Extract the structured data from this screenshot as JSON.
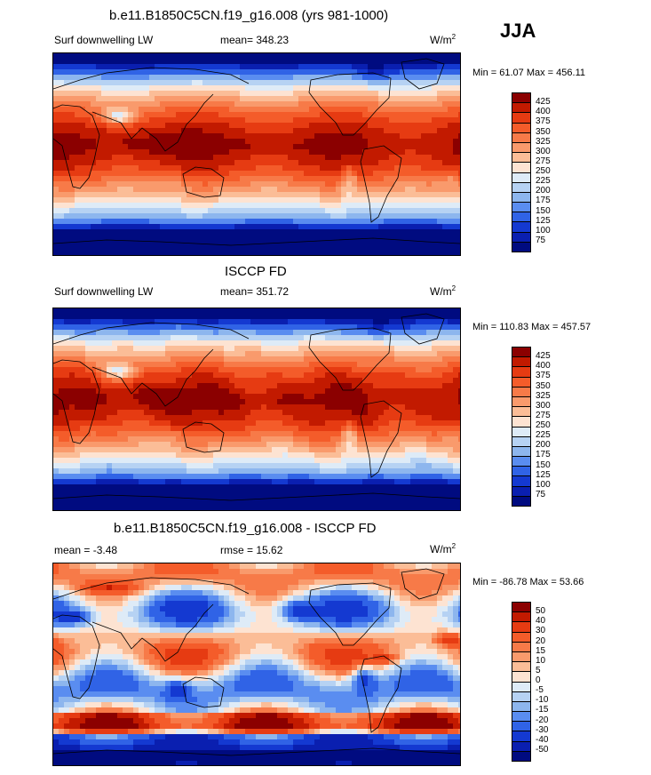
{
  "season": "JJA",
  "panels": [
    {
      "title": "b.e11.B1850C5CN.f19_g16.008 (yrs 981-1000)",
      "left_label": "Surf downwelling LW",
      "center_label": "mean= 348.23",
      "units": "W/m",
      "units_sup": "2",
      "minmax": "Min =  61.07 Max = 456.11",
      "field": "model"
    },
    {
      "title": "ISCCP FD",
      "left_label": "Surf downwelling LW",
      "center_label": "mean= 351.72",
      "units": "W/m",
      "units_sup": "2",
      "minmax": "Min = 110.83 Max = 457.57",
      "field": "obs"
    },
    {
      "title": "b.e11.B1850C5CN.f19_g16.008 - ISCCP FD",
      "left_label": "mean =  -3.48",
      "center_label": "rmse =  15.62",
      "units": "W/m",
      "units_sup": "2",
      "minmax": "Min = -86.78 Max =  53.66",
      "field": "diff"
    }
  ],
  "colorbars": {
    "abs": {
      "labels": [
        "425",
        "400",
        "375",
        "350",
        "325",
        "300",
        "275",
        "250",
        "225",
        "200",
        "175",
        "150",
        "125",
        "100",
        "75"
      ],
      "colors": [
        "#8b0000",
        "#c21a00",
        "#e63b12",
        "#f45c2a",
        "#f77a48",
        "#f99a6c",
        "#fbbd97",
        "#fde3d2",
        "#deebf7",
        "#b6d2f3",
        "#8db6ee",
        "#5a8df0",
        "#3063e6",
        "#1439d1",
        "#0a1fb0",
        "#000b80"
      ]
    },
    "diff": {
      "labels": [
        "50",
        "40",
        "30",
        "20",
        "15",
        "10",
        "5",
        "0",
        "-5",
        "-10",
        "-15",
        "-20",
        "-30",
        "-40",
        "-50"
      ],
      "colors": [
        "#8b0000",
        "#c21a00",
        "#e63b12",
        "#f45c2a",
        "#f77a48",
        "#f99a6c",
        "#fbbd97",
        "#fde3d2",
        "#deebf7",
        "#b6d2f3",
        "#8db6ee",
        "#5a8df0",
        "#3063e6",
        "#1439d1",
        "#0a1fb0",
        "#000b80"
      ]
    }
  }
}
